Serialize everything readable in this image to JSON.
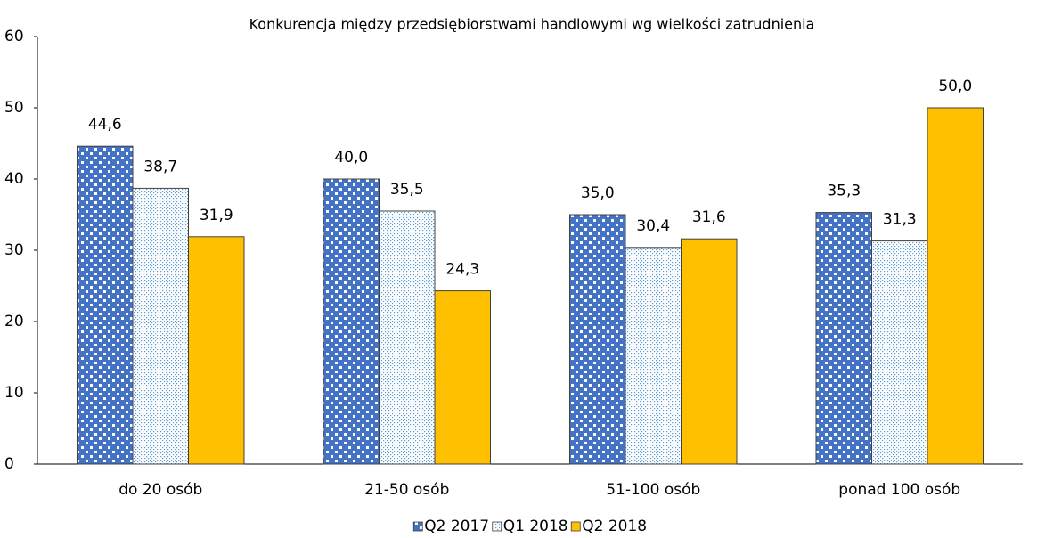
{
  "chart_data": {
    "type": "bar",
    "title": "Konkurencja między przedsiębiorstwami handlowymi wg wielkości zatrudnienia",
    "categories": [
      "do 20 osób",
      "21-50 osób",
      "51-100 osób",
      "ponad 100 osób"
    ],
    "series": [
      {
        "name": "Q2 2017",
        "color": "#4472c4",
        "pattern": "checkerboard",
        "values": [
          44.6,
          40.0,
          35.0,
          35.3
        ],
        "value_labels": [
          "44,6",
          "40,0",
          "35,0",
          "35,3"
        ]
      },
      {
        "name": "Q1 2018",
        "color": "#5b9bd5",
        "pattern": "dots",
        "values": [
          38.7,
          35.5,
          30.4,
          31.3
        ],
        "value_labels": [
          "38,7",
          "35,5",
          "30,4",
          "31,3"
        ]
      },
      {
        "name": "Q2 2018",
        "color": "#ffc000",
        "pattern": "solid",
        "values": [
          31.9,
          24.3,
          31.6,
          50.0
        ],
        "value_labels": [
          "31,9",
          "24,3",
          "31,6",
          "50,0"
        ]
      }
    ],
    "ylim": [
      0,
      60
    ],
    "yticks": [
      0,
      10,
      20,
      30,
      40,
      50,
      60
    ],
    "grid": false,
    "legend": "bottom"
  }
}
